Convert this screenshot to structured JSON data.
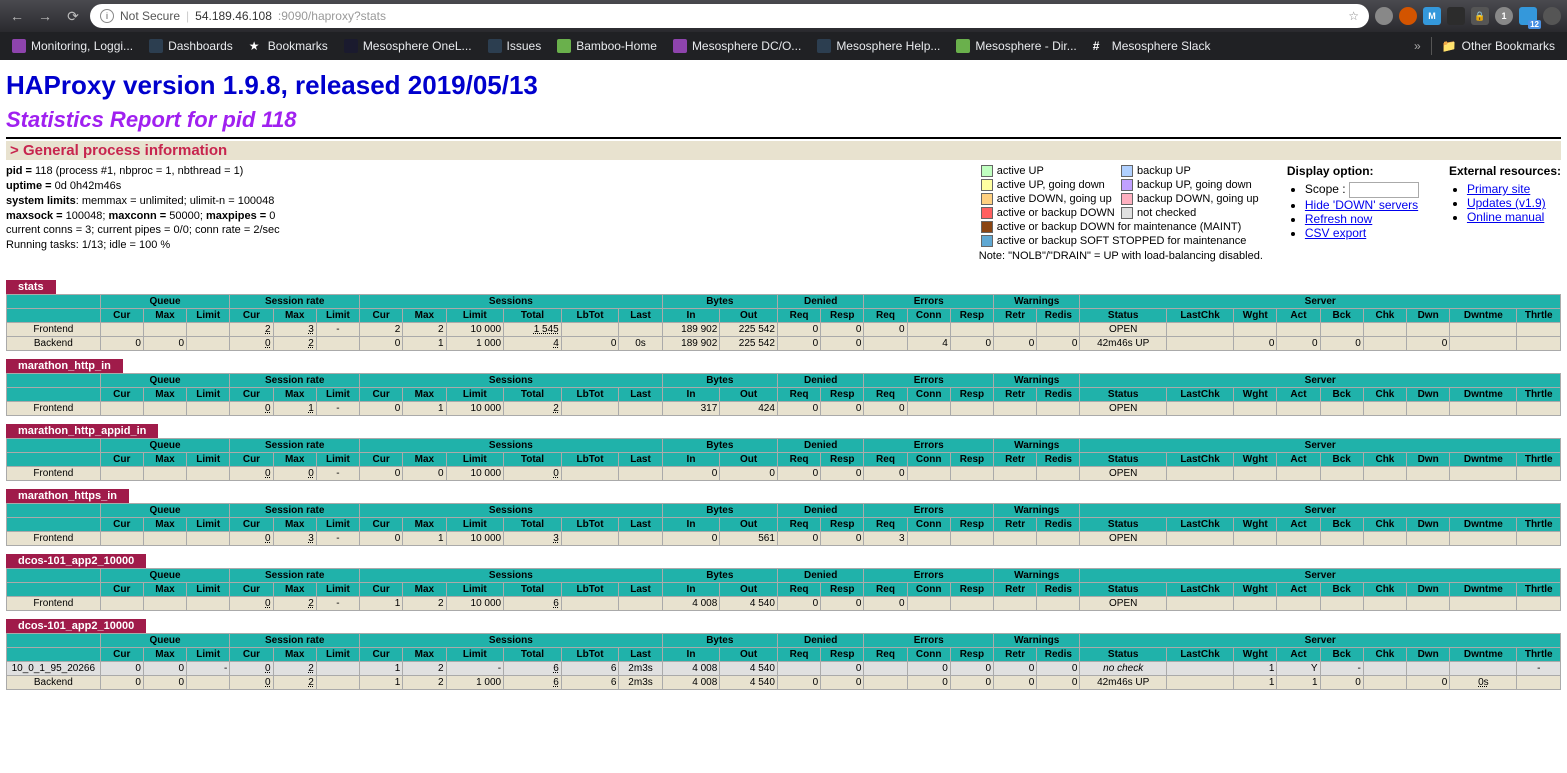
{
  "browser": {
    "url_prefix": "Not Secure",
    "url_host": "54.189.46.108",
    "url_port_path": ":9090/haproxy?stats",
    "bookmarks": [
      {
        "label": "Monitoring, Loggi...",
        "color": "#8e44ad"
      },
      {
        "label": "Dashboards",
        "color": "#2c3e50"
      },
      {
        "label": "Bookmarks",
        "color": "#000"
      },
      {
        "label": "Mesosphere OneL...",
        "color": "#1a1a2e"
      },
      {
        "label": "Issues",
        "color": "#2c3e50"
      },
      {
        "label": "Bamboo-Home",
        "color": "#6ab04c"
      },
      {
        "label": "Mesosphere DC/O...",
        "color": "#8e44ad"
      },
      {
        "label": "Mesosphere Help...",
        "color": "#2c3e50"
      },
      {
        "label": "Mesosphere - Dir...",
        "color": "#6ab04c"
      },
      {
        "label": "Mesosphere Slack",
        "color": "#fff"
      }
    ],
    "other_bookmarks": "Other Bookmarks",
    "ext_badge": "12"
  },
  "page": {
    "title": "HAProxy version 1.9.8, released 2019/05/13",
    "subtitle": "Statistics Report for pid 118",
    "section_header": "General process information",
    "proc_info": {
      "pid_label": "pid = ",
      "pid_val": "118 (process #1, nbproc = 1, nbthread = 1)",
      "uptime_label": "uptime = ",
      "uptime_val": "0d 0h42m46s",
      "syslim_label": "system limits",
      "syslim_val": ": memmax = unlimited; ulimit-n = 100048",
      "maxsock_label": "maxsock = ",
      "maxsock_val": "100048; ",
      "maxconn_label": "maxconn = ",
      "maxconn_val": "50000; ",
      "maxpipes_label": "maxpipes = ",
      "maxpipes_val": "0",
      "curconn": "current conns = 3; current pipes = 0/0; conn rate = 2/sec",
      "running": "Running tasks: 1/13; idle = 100 %"
    },
    "legend": {
      "items": [
        {
          "color": "#c0ffc0",
          "label": "active UP"
        },
        {
          "color": "#b0d0ff",
          "label": "backup UP"
        },
        {
          "color": "#ffffa0",
          "label": "active UP, going down"
        },
        {
          "color": "#c0a0ff",
          "label": "backup UP, going down"
        },
        {
          "color": "#ffd080",
          "label": "active DOWN, going up"
        },
        {
          "color": "#ffb0c0",
          "label": "backup DOWN, going up"
        },
        {
          "color": "#ff6060",
          "label": "active or backup DOWN"
        },
        {
          "color": "#e0e0e0",
          "label": "not checked"
        },
        {
          "color": "#8b4513",
          "label": "active or backup DOWN for maintenance (MAINT)"
        },
        {
          "color": "#5fa8d3",
          "label": "active or backup SOFT STOPPED for maintenance"
        }
      ],
      "note": "Note: \"NOLB\"/\"DRAIN\" = UP with load-balancing disabled."
    },
    "display_option": {
      "title": "Display option:",
      "scope_label": "Scope :",
      "hide_down": "Hide 'DOWN' servers",
      "refresh": "Refresh now",
      "csv": "CSV export"
    },
    "external": {
      "title": "External resources:",
      "primary": "Primary site",
      "updates": "Updates (v1.9)",
      "manual": "Online manual"
    }
  },
  "headers": {
    "groups": [
      "",
      "Queue",
      "Session rate",
      "Sessions",
      "Bytes",
      "Denied",
      "Errors",
      "Warnings",
      "Server"
    ],
    "cols": [
      "",
      "Cur",
      "Max",
      "Limit",
      "Cur",
      "Max",
      "Limit",
      "Cur",
      "Max",
      "Limit",
      "Total",
      "LbTot",
      "Last",
      "In",
      "Out",
      "Req",
      "Resp",
      "Req",
      "Conn",
      "Resp",
      "Retr",
      "Redis",
      "Status",
      "LastChk",
      "Wght",
      "Act",
      "Bck",
      "Chk",
      "Dwn",
      "Dwntme",
      "Thrtle"
    ]
  },
  "proxies": [
    {
      "name": "stats",
      "rows": [
        {
          "name": "Frontend",
          "cells": [
            "Frontend",
            "",
            "",
            "",
            "2",
            "3",
            "-",
            "2",
            "2",
            "10 000",
            "1 545",
            "",
            "",
            "189 902",
            "225 542",
            "0",
            "0",
            "0",
            "",
            "",
            "",
            "",
            "OPEN",
            "",
            "",
            "",
            "",
            "",
            "",
            "",
            ""
          ]
        },
        {
          "name": "Backend",
          "cells": [
            "Backend",
            "0",
            "0",
            "",
            "0",
            "2",
            "",
            "0",
            "1",
            "1 000",
            "4",
            "0",
            "0s",
            "189 902",
            "225 542",
            "0",
            "0",
            "",
            "4",
            "0",
            "0",
            "0",
            "42m46s UP",
            "",
            "0",
            "0",
            "0",
            "",
            "0",
            "",
            ""
          ]
        }
      ]
    },
    {
      "name": "marathon_http_in",
      "rows": [
        {
          "name": "Frontend",
          "cells": [
            "Frontend",
            "",
            "",
            "",
            "0",
            "1",
            "-",
            "0",
            "1",
            "10 000",
            "2",
            "",
            "",
            "317",
            "424",
            "0",
            "0",
            "0",
            "",
            "",
            "",
            "",
            "OPEN",
            "",
            "",
            "",
            "",
            "",
            "",
            "",
            ""
          ]
        }
      ]
    },
    {
      "name": "marathon_http_appid_in",
      "rows": [
        {
          "name": "Frontend",
          "cells": [
            "Frontend",
            "",
            "",
            "",
            "0",
            "0",
            "-",
            "0",
            "0",
            "10 000",
            "0",
            "",
            "",
            "0",
            "0",
            "0",
            "0",
            "0",
            "",
            "",
            "",
            "",
            "OPEN",
            "",
            "",
            "",
            "",
            "",
            "",
            "",
            ""
          ]
        }
      ]
    },
    {
      "name": "marathon_https_in",
      "rows": [
        {
          "name": "Frontend",
          "cells": [
            "Frontend",
            "",
            "",
            "",
            "0",
            "3",
            "-",
            "0",
            "1",
            "10 000",
            "3",
            "",
            "",
            "0",
            "561",
            "0",
            "0",
            "3",
            "",
            "",
            "",
            "",
            "OPEN",
            "",
            "",
            "",
            "",
            "",
            "",
            "",
            ""
          ]
        }
      ]
    },
    {
      "name": "dcos-101_app2_10000",
      "rows": [
        {
          "name": "Frontend",
          "cells": [
            "Frontend",
            "",
            "",
            "",
            "0",
            "2",
            "-",
            "1",
            "2",
            "10 000",
            "6",
            "",
            "",
            "4 008",
            "4 540",
            "0",
            "0",
            "0",
            "",
            "",
            "",
            "",
            "OPEN",
            "",
            "",
            "",
            "",
            "",
            "",
            "",
            ""
          ]
        }
      ]
    },
    {
      "name": "dcos-101_app2_10000",
      "rows": [
        {
          "name": "10_0_1_95_20266",
          "cls": "srv",
          "cells": [
            "10_0_1_95_20266",
            "0",
            "0",
            "-",
            "0",
            "2",
            "",
            "1",
            "2",
            "-",
            "6",
            "6",
            "2m3s",
            "4 008",
            "4 540",
            "",
            "0",
            "",
            "0",
            "0",
            "0",
            "0",
            "no check",
            "",
            "1",
            "Y",
            "-",
            "",
            "",
            "",
            "-"
          ]
        },
        {
          "name": "Backend",
          "cells": [
            "Backend",
            "0",
            "0",
            "",
            "0",
            "2",
            "",
            "1",
            "2",
            "1 000",
            "6",
            "6",
            "2m3s",
            "4 008",
            "4 540",
            "0",
            "0",
            "",
            "0",
            "0",
            "0",
            "0",
            "42m46s UP",
            "",
            "1",
            "1",
            "0",
            "",
            "0",
            "0s",
            ""
          ]
        }
      ]
    }
  ]
}
